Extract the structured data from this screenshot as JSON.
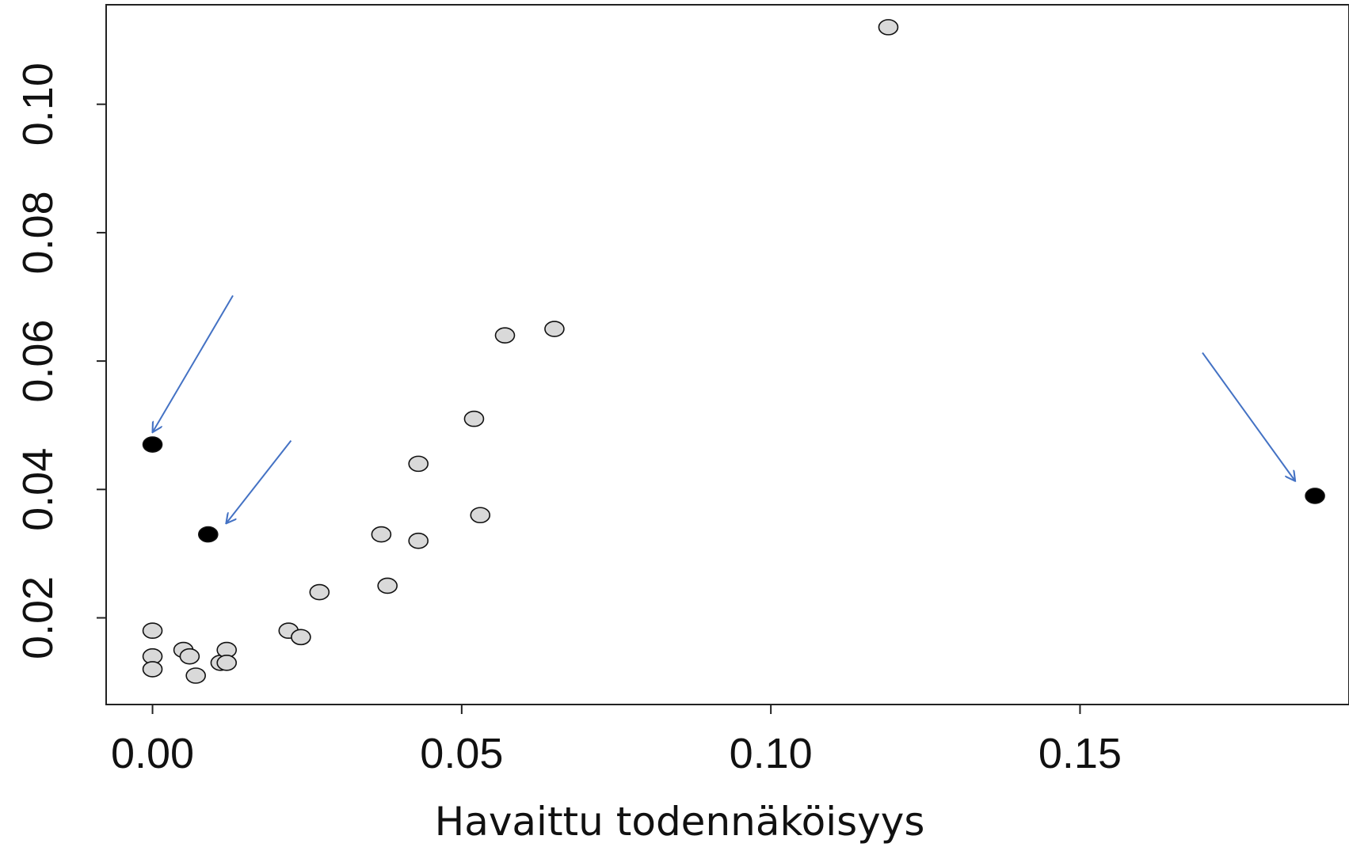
{
  "chart_data": {
    "type": "scatter",
    "title": "",
    "xlabel": "Havaittu todennäköisyys",
    "ylabel": "",
    "xlim": [
      -0.0075,
      0.1935
    ],
    "ylim": [
      0.0065,
      0.1155
    ],
    "x_ticks": [
      {
        "value": 0.0,
        "label": "0.00"
      },
      {
        "value": 0.05,
        "label": "0.05"
      },
      {
        "value": 0.1,
        "label": "0.10"
      },
      {
        "value": 0.15,
        "label": "0.15"
      }
    ],
    "y_ticks": [
      {
        "value": 0.02,
        "label": "0.02"
      },
      {
        "value": 0.04,
        "label": "0.04"
      },
      {
        "value": 0.06,
        "label": "0.06"
      },
      {
        "value": 0.08,
        "label": "0.08"
      },
      {
        "value": 0.1,
        "label": "0.10"
      }
    ],
    "grid": false,
    "legend": "none",
    "series": [
      {
        "marker_color": "#d9d9d9",
        "points": [
          {
            "x": 0.0,
            "y": 0.018
          },
          {
            "x": 0.0,
            "y": 0.014
          },
          {
            "x": 0.0,
            "y": 0.012
          },
          {
            "x": 0.005,
            "y": 0.015
          },
          {
            "x": 0.006,
            "y": 0.014
          },
          {
            "x": 0.007,
            "y": 0.011
          },
          {
            "x": 0.011,
            "y": 0.013
          },
          {
            "x": 0.012,
            "y": 0.015
          },
          {
            "x": 0.012,
            "y": 0.013
          },
          {
            "x": 0.022,
            "y": 0.018
          },
          {
            "x": 0.024,
            "y": 0.017
          },
          {
            "x": 0.027,
            "y": 0.024
          },
          {
            "x": 0.037,
            "y": 0.033
          },
          {
            "x": 0.038,
            "y": 0.025
          },
          {
            "x": 0.043,
            "y": 0.044
          },
          {
            "x": 0.043,
            "y": 0.032
          },
          {
            "x": 0.052,
            "y": 0.051
          },
          {
            "x": 0.053,
            "y": 0.036
          },
          {
            "x": 0.057,
            "y": 0.064
          },
          {
            "x": 0.065,
            "y": 0.065
          },
          {
            "x": 0.119,
            "y": 0.112
          }
        ]
      },
      {
        "marker_color": "#000000",
        "points": [
          {
            "x": 0.0,
            "y": 0.047
          },
          {
            "x": 0.009,
            "y": 0.033
          },
          {
            "x": 0.188,
            "y": 0.039
          }
        ]
      }
    ],
    "annotations": [
      {
        "type": "arrow",
        "color": "#4472c4",
        "from": {
          "x": 0.013,
          "y": 0.0702
        },
        "to": {
          "x": 0.0,
          "y": 0.0489
        }
      },
      {
        "type": "arrow",
        "color": "#4472c4",
        "from": {
          "x": 0.0224,
          "y": 0.0476
        },
        "to": {
          "x": 0.0119,
          "y": 0.0347
        }
      },
      {
        "type": "arrow",
        "color": "#4472c4",
        "from": {
          "x": 0.1698,
          "y": 0.0613
        },
        "to": {
          "x": 0.1848,
          "y": 0.0413
        }
      }
    ]
  }
}
